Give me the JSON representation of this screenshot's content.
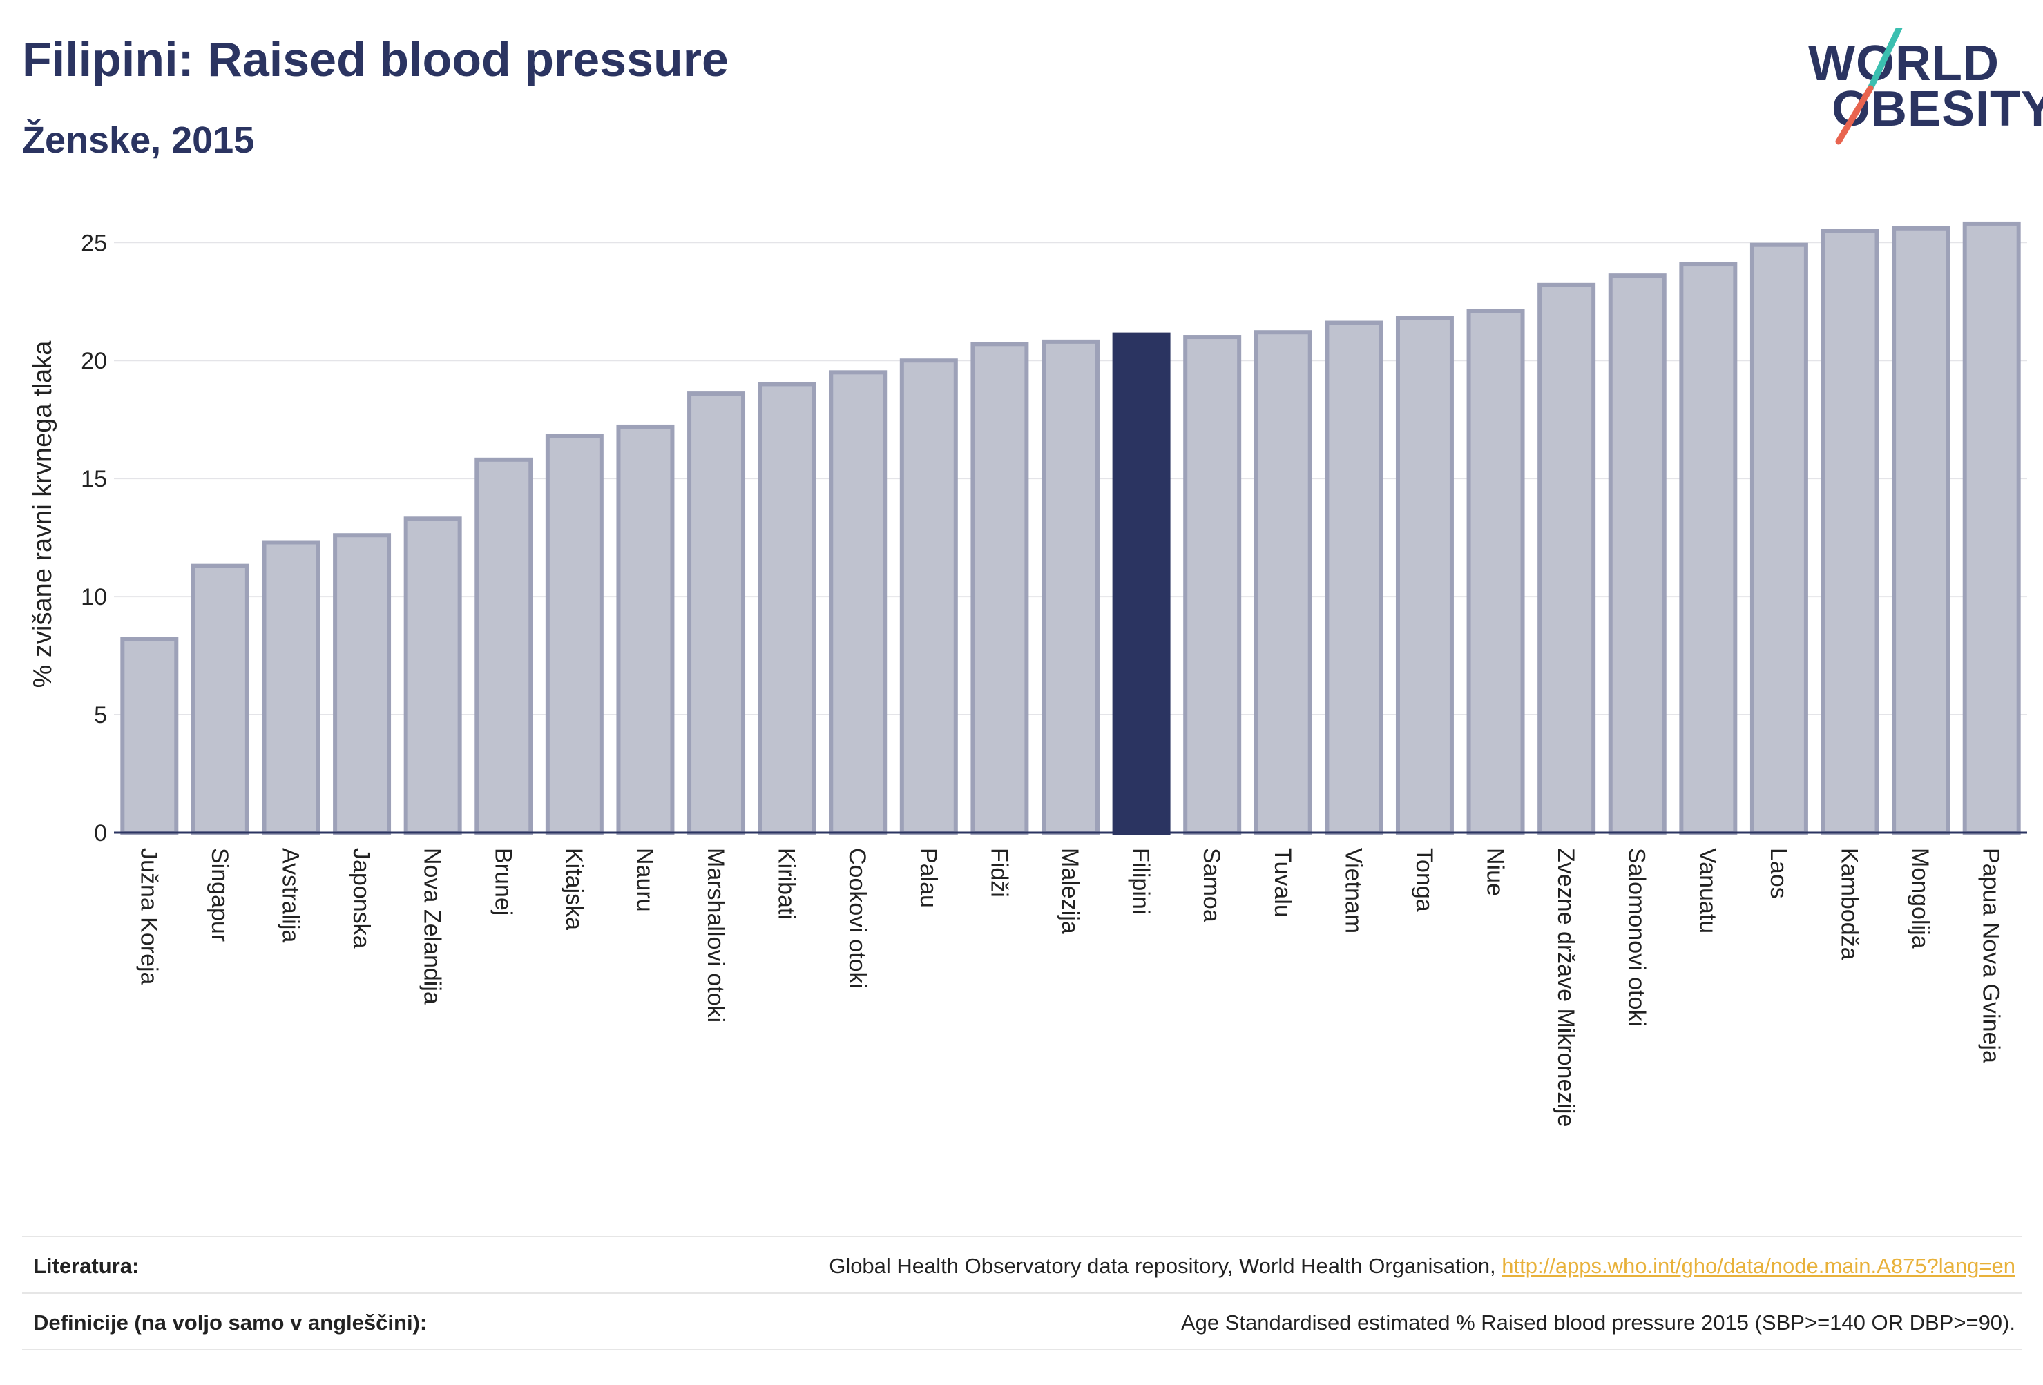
{
  "header": {
    "title": "Filipini: Raised blood pressure",
    "subtitle": "Ženske, 2015"
  },
  "logo": {
    "line1": "WORLD",
    "line2": "OBESITY",
    "colors": {
      "text": "#2b3461",
      "slash_top": "#3bbfb0",
      "slash_bottom": "#e8644f"
    }
  },
  "chart_data": {
    "type": "bar",
    "title": "Filipini: Raised blood pressure",
    "subtitle": "Ženske, 2015",
    "xlabel": "",
    "ylabel": "% zvišane ravni krvnega tlaka",
    "ylim": [
      0,
      26.5
    ],
    "yticks": [
      0,
      5,
      10,
      15,
      20,
      25
    ],
    "grid": true,
    "highlight": "Filipini",
    "colors": {
      "bar": "#bfc2cf",
      "bar_border": "#9da1b8",
      "highlight": "#2b3461"
    },
    "categories": [
      "Južna Koreja",
      "Singapur",
      "Avstralija",
      "Japonska",
      "Nova Zelandija",
      "Brunej",
      "Kitajska",
      "Nauru",
      "Marshallovi otoki",
      "Kiribati",
      "Cookovi otoki",
      "Palau",
      "Fidži",
      "Malezija",
      "Filipini",
      "Samoa",
      "Tuvalu",
      "Vietnam",
      "Tonga",
      "Niue",
      "Zvezne države Mikronezije",
      "Salomonovi otoki",
      "Vanuatu",
      "Laos",
      "Kambodža",
      "Mongolija",
      "Papua Nova Gvineja"
    ],
    "values": [
      8.2,
      11.3,
      12.3,
      12.6,
      13.3,
      15.8,
      16.8,
      17.2,
      18.6,
      19.0,
      19.5,
      20.0,
      20.7,
      20.8,
      21.1,
      21.0,
      21.2,
      21.6,
      21.8,
      22.1,
      23.2,
      23.6,
      24.1,
      24.9,
      25.5,
      25.6,
      25.8
    ]
  },
  "footer": {
    "literature_label": "Literatura:",
    "literature_text": "Global Health Observatory data repository, World Health Organisation, ",
    "literature_link": "http://apps.who.int/gho/data/node.main.A875?lang=en",
    "definitions_label": "Definicije (na voljo samo v angleščini):",
    "definitions_text": "Age Standardised estimated % Raised blood pressure 2015 (SBP>=140 OR DBP>=90)."
  }
}
